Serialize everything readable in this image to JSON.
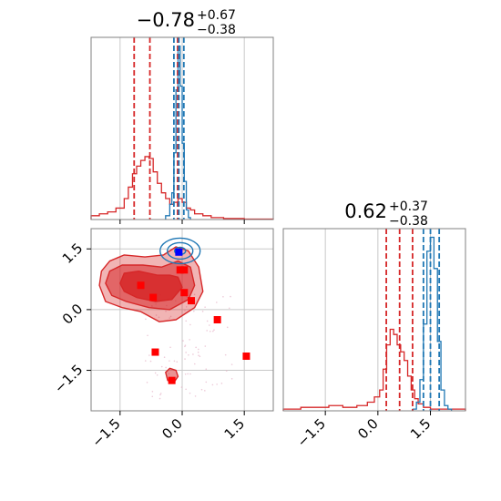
{
  "colors": {
    "red": "#d62728",
    "blue": "#1f77b4",
    "grid": "#c8c8c8",
    "pure_red": "#ff0000",
    "pure_blue": "#0000ff"
  },
  "chart_data": [
    {
      "type": "histogram",
      "panel": "top-left",
      "title": {
        "value": "−0.78",
        "sup": "+0.67",
        "sub": "−0.38"
      },
      "xlim": [
        -2.2,
        2.2
      ],
      "xticks": [
        -1.5,
        0.0,
        1.5
      ],
      "grid": true,
      "series": [
        {
          "color": "red",
          "bins_x": [
            -2.2,
            -2.0,
            -1.8,
            -1.6,
            -1.4,
            -1.3,
            -1.2,
            -1.1,
            -1.0,
            -0.9,
            -0.8,
            -0.7,
            -0.6,
            -0.5,
            -0.4,
            -0.3,
            -0.2,
            -0.1,
            0.0,
            0.1,
            0.2,
            0.3,
            0.5,
            0.7,
            1.0,
            1.5,
            2.2
          ],
          "counts": [
            0.02,
            0.03,
            0.04,
            0.06,
            0.11,
            0.17,
            0.24,
            0.28,
            0.31,
            0.33,
            0.32,
            0.25,
            0.19,
            0.14,
            0.11,
            0.08,
            0.09,
            0.11,
            0.09,
            0.06,
            0.05,
            0.03,
            0.02,
            0.01,
            0.005,
            0.002
          ],
          "quantiles": [
            -1.16,
            -0.78,
            -0.11
          ]
        },
        {
          "color": "blue",
          "bins_x": [
            -0.4,
            -0.3,
            -0.25,
            -0.2,
            -0.15,
            -0.1,
            -0.05,
            0.0,
            0.05,
            0.1,
            0.15,
            0.2
          ],
          "counts": [
            0.02,
            0.08,
            0.14,
            0.35,
            0.68,
            0.91,
            0.7,
            0.4,
            0.2,
            0.05,
            0.01
          ],
          "quantiles": [
            -0.2,
            -0.08,
            0.04
          ]
        }
      ]
    },
    {
      "type": "scatter",
      "panel": "bottom-left",
      "xlim": [
        -2.2,
        2.2
      ],
      "ylim": [
        -2.5,
        2.0
      ],
      "xticks": [
        -1.5,
        0.0,
        1.5
      ],
      "yticks": [
        1.5,
        0.0,
        -1.5
      ],
      "grid": true,
      "red_markers": [
        [
          -1.0,
          0.6
        ],
        [
          -0.7,
          0.3
        ],
        [
          -0.05,
          0.98
        ],
        [
          0.05,
          0.98
        ],
        [
          0.05,
          0.42
        ],
        [
          0.22,
          0.22
        ],
        [
          0.85,
          -0.25
        ],
        [
          -0.65,
          -1.05
        ],
        [
          -0.25,
          -1.75
        ],
        [
          1.55,
          -1.15
        ]
      ],
      "blue_markers": [
        [
          -0.08,
          1.42
        ]
      ]
    },
    {
      "type": "histogram",
      "panel": "bottom-right",
      "title": {
        "value": "0.62",
        "sup": "+0.37",
        "sub": "−0.38"
      },
      "xlim": [
        -2.7,
        2.5
      ],
      "xticks": [
        -1.5,
        0.0,
        1.5
      ],
      "grid": true,
      "series": [
        {
          "color": "red",
          "bins_x": [
            -2.7,
            -2.2,
            -1.8,
            -1.4,
            -1.0,
            -0.6,
            -0.3,
            -0.1,
            0.05,
            0.15,
            0.25,
            0.35,
            0.45,
            0.55,
            0.65,
            0.75,
            0.85,
            0.95,
            1.05,
            1.15,
            1.3,
            1.5,
            2.5
          ],
          "counts": [
            0.01,
            0.02,
            0.02,
            0.03,
            0.02,
            0.03,
            0.05,
            0.08,
            0.12,
            0.24,
            0.38,
            0.47,
            0.44,
            0.38,
            0.34,
            0.29,
            0.2,
            0.12,
            0.07,
            0.04,
            0.02,
            0.01
          ],
          "quantiles": [
            0.24,
            0.62,
            0.99
          ]
        },
        {
          "color": "blue",
          "bins_x": [
            1.0,
            1.1,
            1.2,
            1.3,
            1.4,
            1.5,
            1.6,
            1.7,
            1.8,
            1.9,
            2.0,
            2.1
          ],
          "counts": [
            0.01,
            0.05,
            0.18,
            0.5,
            0.92,
            1.0,
            0.82,
            0.4,
            0.12,
            0.03,
            0.01
          ],
          "quantiles": [
            1.3,
            1.5,
            1.75
          ]
        }
      ]
    }
  ]
}
